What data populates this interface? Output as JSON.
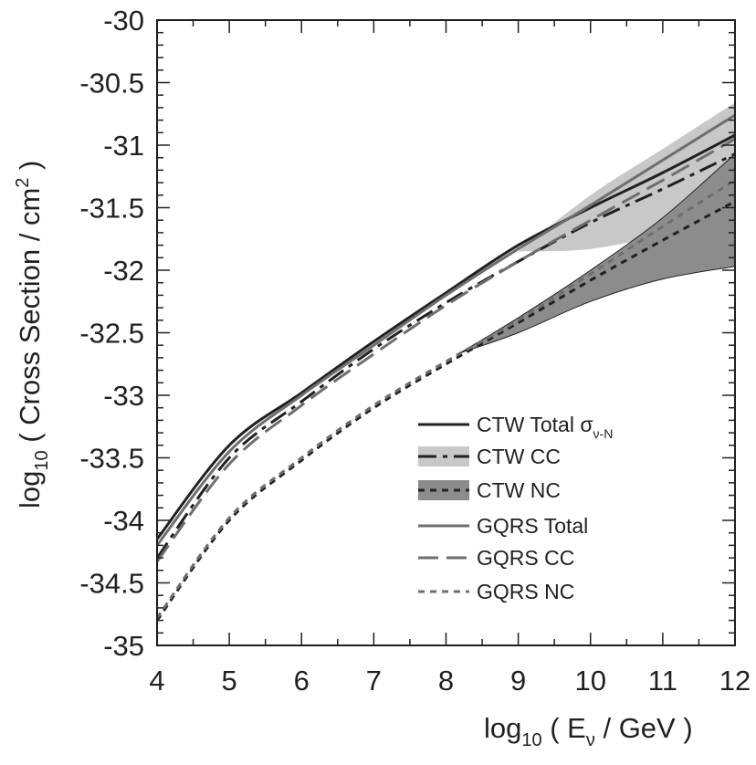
{
  "chart_data": {
    "type": "line",
    "title": "",
    "xlabel": {
      "prefix": "log",
      "sub": "10",
      "open": " ( E",
      "nu": "ν",
      "close": " / GeV )"
    },
    "ylabel": {
      "prefix": "log",
      "sub": "10",
      "main": " ( Cross Section / cm",
      "sup": "2",
      "end": " )"
    },
    "xlim": [
      4,
      12
    ],
    "ylim": [
      -35,
      -30
    ],
    "x_ticks": [
      "4",
      "5",
      "6",
      "7",
      "8",
      "9",
      "10",
      "11",
      "12"
    ],
    "y_ticks": [
      "-30",
      "-30.5",
      "-31",
      "-31.5",
      "-32",
      "-32.5",
      "-33",
      "-33.5",
      "-34",
      "-34.5",
      "-35"
    ],
    "x_tick_values": [
      4,
      5,
      6,
      7,
      8,
      9,
      10,
      11,
      12
    ],
    "y_tick_values": [
      -30,
      -30.5,
      -31,
      -31.5,
      -32,
      -32.5,
      -33,
      -33.5,
      -34,
      -34.5,
      -35
    ],
    "bands": [
      {
        "name": "CTW CC uncertainty",
        "color": "#c8c8c8",
        "x": [
          9,
          10,
          11,
          12
        ],
        "upper": [
          -31.85,
          -31.4,
          -31.03,
          -30.66
        ],
        "lower": [
          -31.85,
          -31.83,
          -31.7,
          -31.42
        ]
      },
      {
        "name": "CTW NC uncertainty",
        "color": "#8c8c8c",
        "x": [
          8.2,
          9,
          10,
          11,
          12
        ],
        "upper": [
          -32.66,
          -32.38,
          -32.0,
          -31.58,
          -31.07
        ],
        "lower": [
          -32.66,
          -32.5,
          -32.25,
          -32.07,
          -31.97
        ]
      }
    ],
    "series": [
      {
        "name": "CTW Total",
        "style": "solid",
        "color": "#231f20",
        "width": 3,
        "x": [
          4,
          5,
          6,
          7,
          8,
          9,
          10,
          11,
          12
        ],
        "y": [
          -34.15,
          -33.4,
          -32.98,
          -32.57,
          -32.18,
          -31.8,
          -31.5,
          -31.22,
          -30.92
        ]
      },
      {
        "name": "CTW CC",
        "style": "dashdot",
        "color": "#231f20",
        "width": 3,
        "x": [
          4,
          5,
          6,
          7,
          8,
          9,
          10,
          11,
          12
        ],
        "y": [
          -34.3,
          -33.5,
          -33.05,
          -32.63,
          -32.26,
          -31.93,
          -31.62,
          -31.35,
          -31.07
        ]
      },
      {
        "name": "CTW NC",
        "style": "dotted",
        "color": "#231f20",
        "width": 3,
        "x": [
          4,
          5,
          6,
          7,
          8,
          9,
          10,
          11,
          12
        ],
        "y": [
          -34.8,
          -34.0,
          -33.52,
          -33.1,
          -32.75,
          -32.42,
          -32.08,
          -31.76,
          -31.45
        ]
      },
      {
        "name": "GQRS Total",
        "style": "solid",
        "color": "#6d6e71",
        "width": 3,
        "x": [
          4,
          5,
          6,
          7,
          8,
          9,
          10,
          11,
          12
        ],
        "y": [
          -34.2,
          -33.45,
          -33.0,
          -32.6,
          -32.2,
          -31.83,
          -31.48,
          -31.12,
          -30.76
        ]
      },
      {
        "name": "GQRS CC",
        "style": "dashed",
        "color": "#6d6e71",
        "width": 3,
        "x": [
          4,
          5,
          6,
          7,
          8,
          9,
          10,
          11,
          12
        ],
        "y": [
          -34.33,
          -33.55,
          -33.08,
          -32.67,
          -32.28,
          -31.93,
          -31.6,
          -31.28,
          -30.95
        ]
      },
      {
        "name": "GQRS NC",
        "style": "dotted",
        "color": "#6d6e71",
        "width": 3,
        "x": [
          4,
          5,
          6,
          7,
          8,
          9,
          10,
          11,
          12
        ],
        "y": [
          -34.78,
          -33.98,
          -33.5,
          -33.08,
          -32.73,
          -32.4,
          -32.03,
          -31.65,
          -31.28
        ]
      }
    ],
    "legend": {
      "placement": "lower-right",
      "entries": [
        {
          "label": "CTW Total ",
          "sigma": "σ",
          "sub": "ν-N",
          "line": "solid",
          "color": "#231f20",
          "band": ""
        },
        {
          "label": "CTW CC",
          "line": "dashdot",
          "color": "#231f20",
          "band": "#c8c8c8"
        },
        {
          "label": "CTW NC",
          "line": "dotted",
          "color": "#231f20",
          "band": "#8c8c8c"
        },
        {
          "label": "GQRS Total",
          "line": "solid",
          "color": "#6d6e71",
          "band": ""
        },
        {
          "label": "GQRS CC",
          "line": "dashed",
          "color": "#6d6e71",
          "band": ""
        },
        {
          "label": "GQRS NC",
          "line": "dotted",
          "color": "#6d6e71",
          "band": ""
        }
      ]
    }
  }
}
